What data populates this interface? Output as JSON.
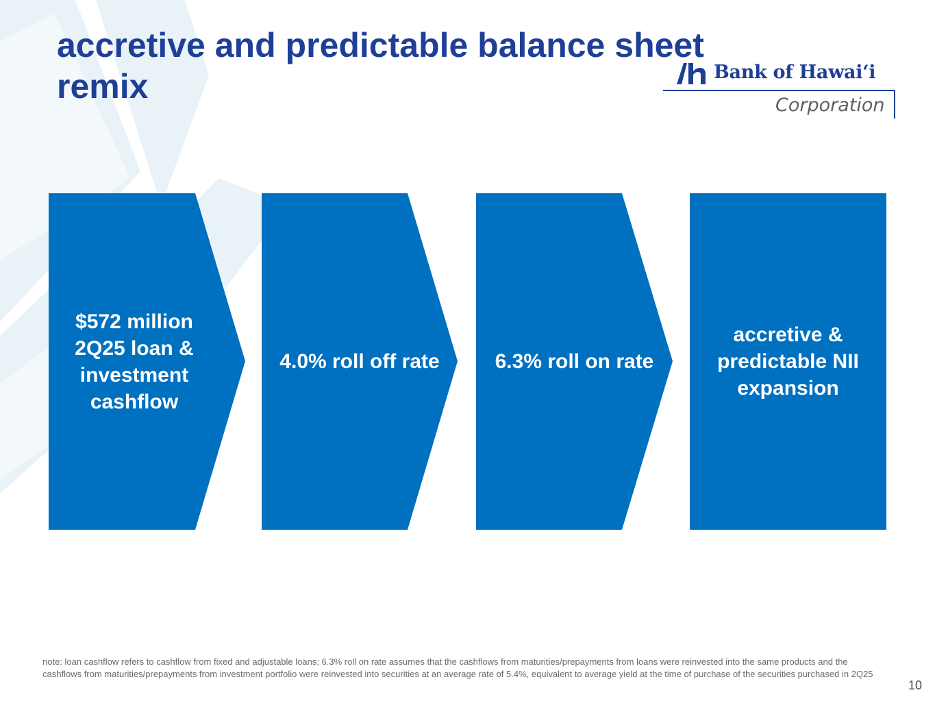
{
  "slide": {
    "title": "accretive and predictable balance sheet remix",
    "page_number": "10",
    "note": "note: loan cashflow refers to cashflow from fixed and adjustable loans; 6.3% roll on rate assumes that the cashflows from maturities/prepayments from loans were reinvested into the same products and the cashflows from maturities/prepayments from investment portfolio were reinvested into securities at an average rate of 5.4%, equivalent to average yield at the time of purchase of the securities purchased in 2Q25"
  },
  "logo": {
    "name": "Bank of Hawaiʻi",
    "sub": "Corporation"
  },
  "steps": [
    {
      "label": "$572 million 2Q25 loan & investment cashflow"
    },
    {
      "label": "4.0% roll off rate"
    },
    {
      "label": "6.3% roll on rate"
    },
    {
      "label": "accretive & predictable NII expansion"
    }
  ],
  "colors": {
    "title": "#1f3f97",
    "step_fill": "#0070c0",
    "note_text": "#6a6a6a"
  }
}
